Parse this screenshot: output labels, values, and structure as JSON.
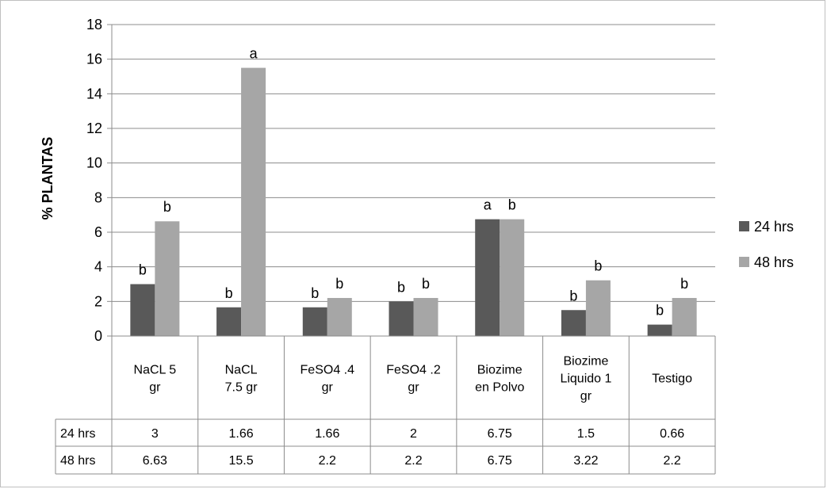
{
  "chart_data": {
    "type": "bar",
    "title": "",
    "xlabel": "",
    "ylabel": "% PLANTAS",
    "ylim": [
      0,
      18
    ],
    "ytick_step": 2,
    "grid": true,
    "legend_position": "right",
    "categories": [
      [
        "NaCL   5",
        "gr"
      ],
      [
        "NaCL",
        "7.5 gr"
      ],
      [
        "FeSO4  .4",
        "gr"
      ],
      [
        "FeSO4  .2",
        "gr"
      ],
      [
        "Biozime",
        "en Polvo"
      ],
      [
        "Biozime",
        "Liquido 1",
        "gr"
      ],
      [
        "Testigo"
      ]
    ],
    "series": [
      {
        "name": "24 hrs",
        "color": "#595959",
        "values": [
          3,
          1.66,
          1.66,
          2,
          6.75,
          1.5,
          0.66
        ],
        "labels": [
          "3",
          "1.66",
          "1.66",
          "2",
          "6.75",
          "1.5",
          "0.66"
        ],
        "significance": [
          "b",
          "b",
          "b",
          "b",
          "a",
          "b",
          "b"
        ]
      },
      {
        "name": "48 hrs",
        "color": "#a6a6a6",
        "values": [
          6.63,
          15.5,
          2.2,
          2.2,
          6.75,
          3.22,
          2.2
        ],
        "labels": [
          "6.63",
          "15.5",
          "2.2",
          "2.2",
          "6.75",
          "3.22",
          "2.2"
        ],
        "significance": [
          "b",
          "a",
          "b",
          "b",
          "b",
          "b",
          "b"
        ]
      }
    ]
  }
}
